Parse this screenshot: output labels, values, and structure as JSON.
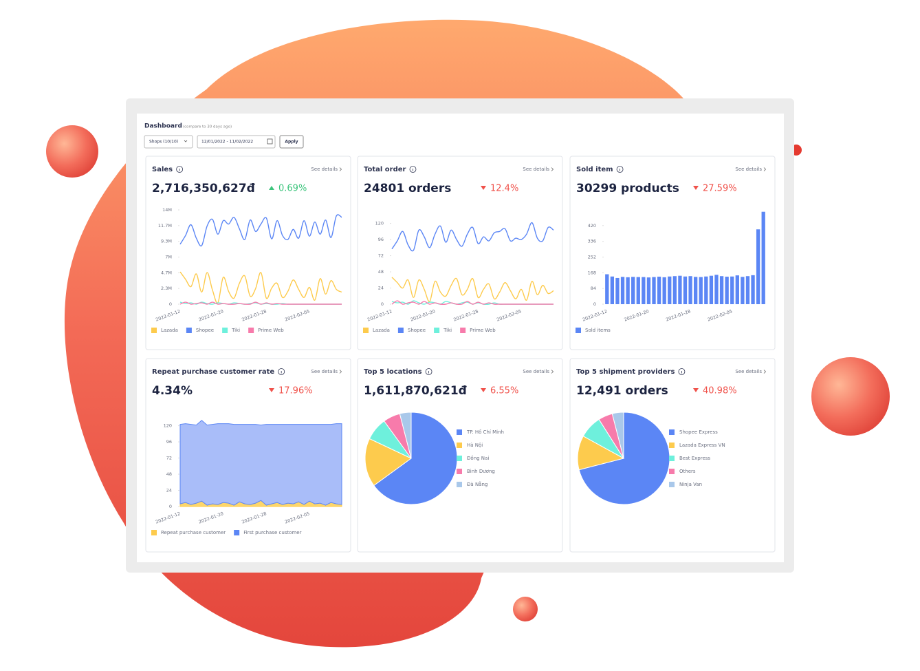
{
  "header": {
    "title": "Dashboard",
    "note": "(compare to 30 days ago)",
    "shops": "Shops (10/10)",
    "date_range": "12/01/2022 - 11/02/2022",
    "apply": "Apply"
  },
  "chart_data": [
    {
      "type": "line",
      "title": "Sales",
      "link": "See details",
      "headline": "2,716,350,627đ",
      "change": "0.69%",
      "trend": "up",
      "categories": [
        "2022-01-12",
        null,
        null,
        null,
        null,
        null,
        null,
        null,
        "2022-01-20",
        null,
        null,
        null,
        null,
        null,
        null,
        null,
        "2022-01-28",
        null,
        null,
        null,
        null,
        null,
        null,
        null,
        "2022-02-05",
        null,
        null,
        null,
        null,
        null,
        null
      ],
      "ylim": [
        0,
        14000000
      ],
      "yticks": [
        0,
        {
          "value": 2333333,
          "label": "2.3M"
        },
        {
          "value": 4666667,
          "label": "4.7M"
        },
        {
          "value": 7000000,
          "label": "7M"
        },
        {
          "value": 9333333,
          "label": "9.3M"
        },
        {
          "value": 11666667,
          "label": "11.7M"
        },
        {
          "value": 14000000,
          "label": "14M"
        }
      ],
      "series": [
        {
          "name": "Lazada",
          "color": "#fdcb4d",
          "values": [
            4800000,
            3700000,
            2600000,
            4500000,
            1800000,
            4700000,
            2100000,
            200000,
            4000000,
            1900000,
            900000,
            3100000,
            4200000,
            1200000,
            2300000,
            4700000,
            900000,
            2400000,
            3100000,
            1000000,
            1900000,
            3600000,
            2200000,
            1000000,
            2500000,
            600000,
            3800000,
            1500000,
            3500000,
            2200000,
            1800000
          ]
        },
        {
          "name": "Shopee",
          "color": "#5b86f5",
          "values": [
            8900000,
            10200000,
            11800000,
            9800000,
            8700000,
            11600000,
            12600000,
            10400000,
            12400000,
            11900000,
            12900000,
            11200000,
            9600000,
            12500000,
            10800000,
            11900000,
            12800000,
            9700000,
            12400000,
            10200000,
            9600000,
            11100000,
            9800000,
            12400000,
            10100000,
            12200000,
            10400000,
            12500000,
            9900000,
            13100000,
            12900000
          ]
        },
        {
          "name": "Tiki",
          "color": "#6ef0dc",
          "values": [
            300000,
            100000,
            200000,
            0,
            300000,
            100000,
            0,
            200000,
            100000,
            0,
            200000,
            100000,
            0,
            100000,
            200000,
            0,
            100000,
            0,
            0,
            100000,
            0,
            0,
            0,
            0,
            0,
            0,
            0,
            0,
            0,
            0,
            0
          ]
        },
        {
          "name": "Prime Web",
          "color": "#f77bab",
          "values": [
            0,
            300000,
            0,
            100000,
            200000,
            0,
            300000,
            0,
            100000,
            0,
            0,
            100000,
            0,
            0,
            300000,
            0,
            200000,
            0,
            100000,
            0,
            0,
            0,
            0,
            0,
            0,
            0,
            0,
            0,
            0,
            0,
            0
          ]
        }
      ]
    },
    {
      "type": "line",
      "title": "Total order",
      "link": "See details",
      "headline": "24801 orders",
      "change": "12.4%",
      "trend": "down",
      "categories": [
        "2022-01-12",
        null,
        null,
        null,
        null,
        null,
        null,
        null,
        "2022-01-20",
        null,
        null,
        null,
        null,
        null,
        null,
        null,
        "2022-01-28",
        null,
        null,
        null,
        null,
        null,
        null,
        null,
        "2022-02-05",
        null,
        null,
        null,
        null,
        null,
        null
      ],
      "ylim": [
        0,
        140
      ],
      "yticks": [
        0,
        24,
        48,
        72,
        96,
        120
      ],
      "series": [
        {
          "name": "Lazada",
          "color": "#fdcb4d",
          "values": [
            40,
            32,
            24,
            36,
            10,
            36,
            22,
            4,
            34,
            18,
            12,
            28,
            38,
            14,
            22,
            38,
            10,
            22,
            30,
            8,
            18,
            32,
            20,
            8,
            22,
            6,
            34,
            14,
            28,
            16,
            20
          ]
        },
        {
          "name": "Shopee",
          "color": "#5b86f5",
          "values": [
            82,
            94,
            108,
            88,
            80,
            110,
            100,
            84,
            104,
            116,
            92,
            110,
            96,
            86,
            104,
            114,
            90,
            100,
            94,
            106,
            108,
            112,
            94,
            98,
            96,
            104,
            121,
            98,
            94,
            114,
            110
          ]
        },
        {
          "name": "Tiki",
          "color": "#6ef0dc",
          "values": [
            4,
            2,
            3,
            0,
            5,
            2,
            0,
            3,
            2,
            0,
            4,
            2,
            0,
            2,
            3,
            0,
            2,
            0,
            0,
            2,
            0,
            0,
            0,
            0,
            0,
            0,
            0,
            0,
            0,
            0,
            0
          ]
        },
        {
          "name": "Prime Web",
          "color": "#f77bab",
          "values": [
            0,
            5,
            0,
            2,
            3,
            0,
            4,
            0,
            2,
            0,
            0,
            2,
            0,
            0,
            4,
            0,
            3,
            0,
            2,
            0,
            0,
            0,
            0,
            0,
            0,
            0,
            0,
            0,
            0,
            0,
            0
          ]
        }
      ]
    },
    {
      "type": "bar",
      "title": "Sold item",
      "link": "See details",
      "headline": "30299 products",
      "change": "27.59%",
      "trend": "down",
      "categories": [
        "2022-01-12",
        null,
        null,
        null,
        null,
        null,
        null,
        null,
        "2022-01-20",
        null,
        null,
        null,
        null,
        null,
        null,
        null,
        "2022-01-28",
        null,
        null,
        null,
        null,
        null,
        null,
        null,
        "2022-02-05",
        null,
        null,
        null,
        null,
        null,
        null
      ],
      "ylim": [
        0,
        504
      ],
      "yticks": [
        0,
        84,
        168,
        252,
        336,
        420
      ],
      "series": [
        {
          "name": "Sold items",
          "color": "#5b86f5",
          "values": [
            160,
            148,
            140,
            146,
            144,
            146,
            145,
            145,
            143,
            145,
            147,
            144,
            148,
            150,
            152,
            148,
            150,
            146,
            145,
            148,
            152,
            157,
            150,
            147,
            148,
            154,
            146,
            150,
            155,
            400,
            494
          ]
        }
      ]
    },
    {
      "type": "area",
      "title": "Repeat purchase customer rate",
      "link": "See details",
      "headline": "4.34%",
      "change": "17.96%",
      "trend": "down",
      "categories": [
        "2022-01-12",
        null,
        null,
        null,
        null,
        null,
        null,
        null,
        "2022-01-20",
        null,
        null,
        null,
        null,
        null,
        null,
        null,
        "2022-01-28",
        null,
        null,
        null,
        null,
        null,
        null,
        null,
        "2022-02-05",
        null,
        null,
        null,
        null,
        null,
        null
      ],
      "ylim": [
        0,
        140
      ],
      "yticks": [
        0,
        24,
        48,
        72,
        96,
        120
      ],
      "series": [
        {
          "name": "Repeat purchase customer",
          "color": "#fdcb4d",
          "values": [
            4,
            6,
            3,
            5,
            8,
            2,
            4,
            3,
            6,
            5,
            2,
            7,
            4,
            3,
            5,
            9,
            2,
            4,
            6,
            3,
            5,
            4,
            7,
            3,
            8,
            4,
            5,
            2,
            6,
            4,
            3
          ]
        },
        {
          "name": "First purchase customer",
          "color": "#5b86f5",
          "values": [
            118,
            117,
            119,
            116,
            120,
            119,
            118,
            120,
            117,
            118,
            120,
            115,
            118,
            119,
            117,
            112,
            120,
            118,
            116,
            119,
            117,
            118,
            115,
            119,
            114,
            118,
            117,
            120,
            116,
            119,
            120
          ]
        }
      ]
    },
    {
      "type": "pie",
      "title": "Top 5 locations",
      "link": "See details",
      "headline": "1,611,870,621đ",
      "change": "6.55%",
      "trend": "down",
      "labels": [
        "TP. Hồ Chí Minh",
        "Hà Nội",
        "Đồng Nai",
        "Bình Dương",
        "Đà Nẵng"
      ],
      "values": [
        65,
        17,
        8,
        6,
        4
      ],
      "colors": [
        "#5b86f5",
        "#fdcb4d",
        "#6ef0dc",
        "#f77bab",
        "#a9c8ea"
      ]
    },
    {
      "type": "pie",
      "title": "Top 5 shipment providers",
      "link": "See details",
      "headline": "12,491 orders",
      "change": "40.98%",
      "trend": "down",
      "labels": [
        "Shopee Express",
        "Lazada Express VN",
        "Best Express",
        "Others",
        "Ninja Van"
      ],
      "values": [
        71,
        12,
        8,
        5,
        4
      ],
      "colors": [
        "#5b86f5",
        "#fdcb4d",
        "#6ef0dc",
        "#f77bab",
        "#a9c8ea"
      ]
    }
  ]
}
